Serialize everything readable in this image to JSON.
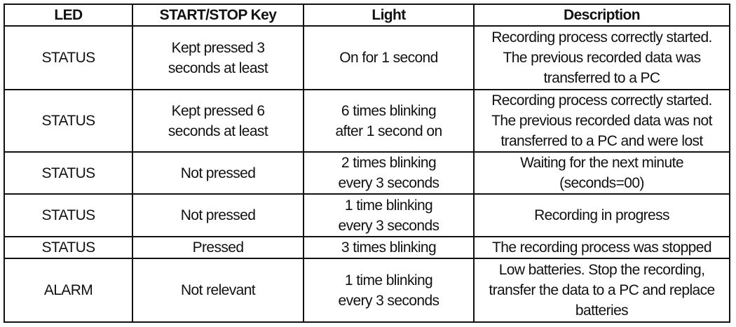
{
  "table": {
    "headers": [
      "LED",
      "START/STOP Key",
      "Light",
      "Description"
    ],
    "rows": [
      [
        "STATUS",
        "Kept pressed 3\nseconds at least",
        "On for 1 second",
        "Recording process correctly started.\nThe previous recorded data was\ntransferred to a PC"
      ],
      [
        "STATUS",
        "Kept pressed 6\nseconds at least",
        "6 times blinking\nafter 1 second on",
        "Recording process correctly started.\nThe previous recorded data was not\ntransferred to a PC and were lost"
      ],
      [
        "STATUS",
        "Not pressed",
        "2 times blinking\nevery 3 seconds",
        "Waiting for the next minute\n(seconds=00)"
      ],
      [
        "STATUS",
        "Not pressed",
        "1 time blinking\nevery 3 seconds",
        "Recording in progress"
      ],
      [
        "STATUS",
        "Pressed",
        "3 times blinking",
        "The recording process was stopped"
      ],
      [
        "ALARM",
        "Not relevant",
        "1 time blinking\nevery 3 seconds",
        "Low batteries. Stop the recording,\ntransfer the data to a PC and replace\nbatteries"
      ]
    ]
  }
}
